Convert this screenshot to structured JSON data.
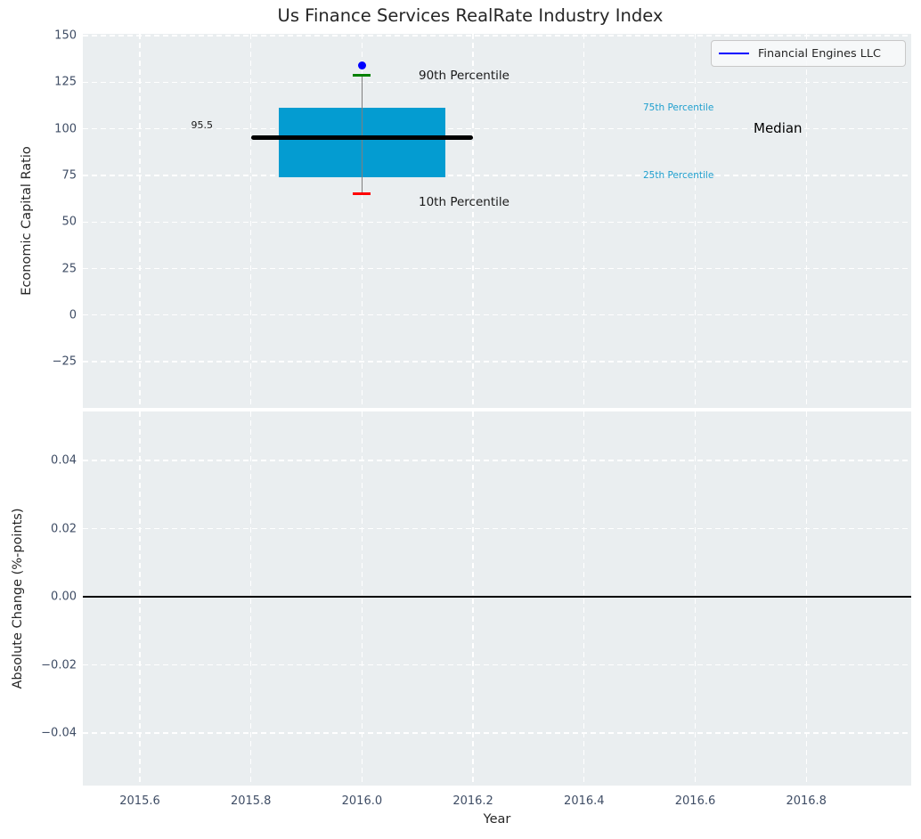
{
  "chart_data": [
    {
      "type": "boxplot",
      "title": "Us Finance Services RealRate Industry Index",
      "ylabel": "Economic Capital Ratio",
      "ylim": [
        -50,
        151
      ],
      "xlim": [
        2015.5,
        2017.0
      ],
      "yticks": [
        150,
        125,
        100,
        75,
        50,
        25,
        0,
        -25
      ],
      "ytick_labels": [
        "150",
        "125",
        "100",
        "75",
        "50",
        "25",
        "0",
        "−25"
      ],
      "xticks": [
        2015.6,
        2015.8,
        2016.0,
        2016.2,
        2016.4,
        2016.6,
        2016.8
      ],
      "grid": "white dashed on light gray background",
      "box": {
        "x": 2016.0,
        "box_width_years": 0.3,
        "median_line_width_years": 0.4,
        "p10": 65,
        "p25": 74,
        "median": 95.5,
        "p75": 111.5,
        "p90": 128.5
      },
      "company_point": {
        "label": "Financial Engines LLC",
        "x": 2016.0,
        "y": 134
      },
      "annotations": {
        "p90": "90th Percentile",
        "p10": "10th Percentile",
        "p75": "75th Percentile",
        "p25": "25th Percentile",
        "median": "Median",
        "median_value": "95.5"
      },
      "legend": {
        "position": "upper right",
        "entries": [
          {
            "label": "Financial Engines LLC",
            "color": "#0000ff"
          }
        ]
      },
      "colors": {
        "box_fill": "#049cd1",
        "median_line": "#000000",
        "p90_cap": "#008000",
        "p10_cap": "#ff0000",
        "whisker": "#7f7f7f",
        "company_point": "#0000ff",
        "percentile_label": "#1f9fce",
        "plot_background": "#eaeef0",
        "tick_label": "#3f4d65"
      }
    },
    {
      "type": "line",
      "ylabel": "Absolute Change (%-points)",
      "xlabel": "Year",
      "ylim": [
        -0.055,
        0.055
      ],
      "yticks": [
        0.04,
        0.02,
        0.0,
        -0.02,
        -0.04
      ],
      "ytick_labels": [
        "0.04",
        "0.02",
        "0.00",
        "−0.02",
        "−0.04"
      ],
      "xticks": [
        2015.6,
        2015.8,
        2016.0,
        2016.2,
        2016.4,
        2016.6,
        2016.8
      ],
      "xtick_labels": [
        "2015.6",
        "2015.8",
        "2016.0",
        "2016.2",
        "2016.4",
        "2016.6",
        "2016.8"
      ],
      "zero_line_y": 0.0,
      "series": []
    }
  ]
}
